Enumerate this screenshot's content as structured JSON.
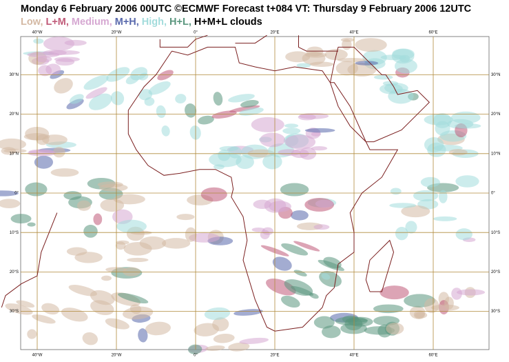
{
  "header": {
    "title": "Monday 6 February 2006 00UTC ©ECMWF Forecast t+084 VT: Thursday 9 February 2006 12UTC",
    "legend": [
      {
        "label": "Low,",
        "color": "#d4b9a4"
      },
      {
        "label": "L+M,",
        "color": "#c05a78"
      },
      {
        "label": "Medium,",
        "color": "#d6a8d2"
      },
      {
        "label": "M+H,",
        "color": "#5868ac"
      },
      {
        "label": "High,",
        "color": "#a3dcdc"
      },
      {
        "label": "H+L,",
        "color": "#5a967e"
      },
      {
        "label": "H+M+L clouds",
        "color": "#000000"
      }
    ]
  },
  "map": {
    "lon_labels": [
      "40°W",
      "20°W",
      "0°",
      "20°E",
      "40°E",
      "60°E"
    ],
    "lat_labels": [
      "30°N",
      "20°N",
      "10°N",
      "0°",
      "10°S",
      "20°S",
      "30°S"
    ]
  }
}
